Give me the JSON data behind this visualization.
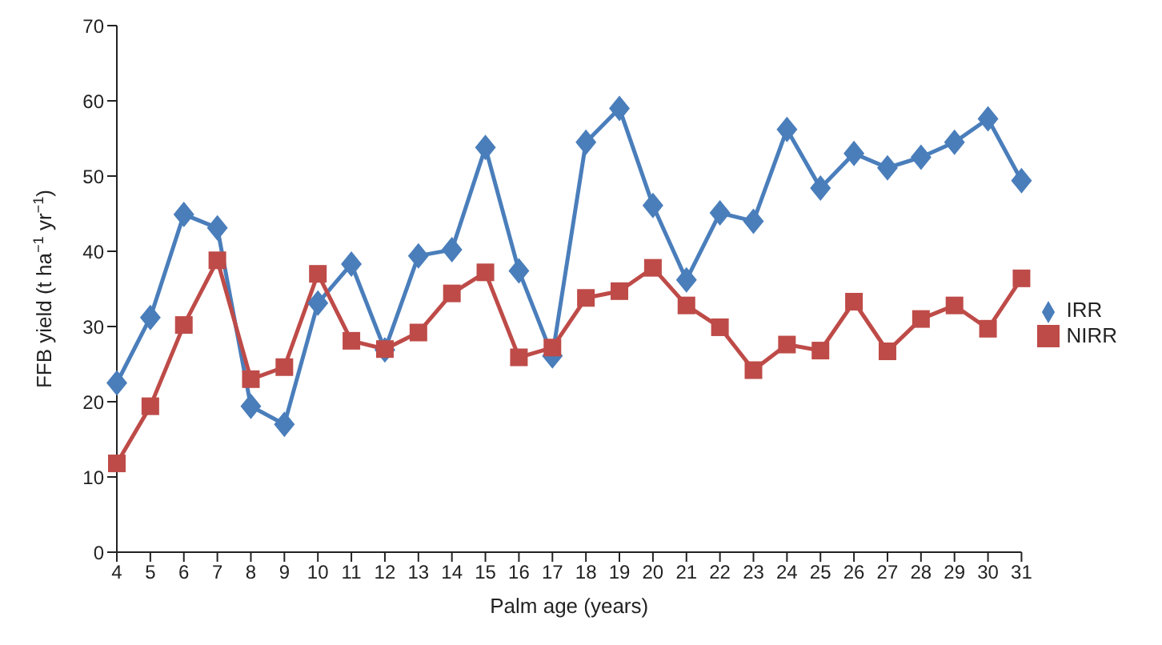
{
  "chart_data": {
    "type": "line",
    "xlabel": "Palm age (years)",
    "ylabel": "FFB yield (t ha$^{−1}$ yr$^{−1}$)",
    "categories": [
      "4",
      "5",
      "6",
      "7",
      "8",
      "9",
      "10",
      "11",
      "12",
      "13",
      "14",
      "15",
      "16",
      "17",
      "18",
      "19",
      "20",
      "21",
      "22",
      "23",
      "24",
      "25",
      "26",
      "27",
      "28",
      "29",
      "30",
      "31"
    ],
    "series": [
      {
        "name": "IRR",
        "color": "#4a7ebb",
        "marker": "diamond",
        "values": [
          22.5,
          31.2,
          44.9,
          43.1,
          19.4,
          17.0,
          33.1,
          38.3,
          26.9,
          39.4,
          40.2,
          53.8,
          37.4,
          26.1,
          54.5,
          59.0,
          46.1,
          36.2,
          45.1,
          44.0,
          56.2,
          48.4,
          53.0,
          51.1,
          52.5,
          54.5,
          57.6,
          49.4
        ]
      },
      {
        "name": "NIRR",
        "color": "#be4b48",
        "marker": "square",
        "values": [
          11.8,
          19.4,
          30.2,
          38.8,
          23.0,
          24.6,
          37.0,
          28.1,
          27.0,
          29.2,
          34.4,
          37.2,
          25.9,
          27.2,
          33.8,
          34.7,
          37.8,
          32.8,
          29.9,
          24.2,
          27.6,
          26.8,
          33.3,
          26.7,
          31.0,
          32.8,
          29.7,
          36.4
        ]
      }
    ],
    "ylim": [
      0,
      70
    ],
    "yticks": [
      0,
      10,
      20,
      30,
      40,
      50,
      60,
      70
    ],
    "grid": false,
    "legend": "right",
    "line_style": "solid"
  }
}
